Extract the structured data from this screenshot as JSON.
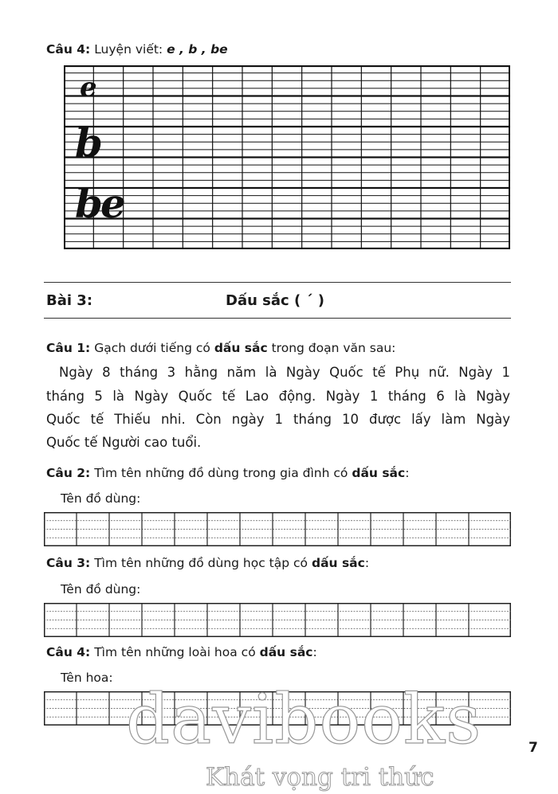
{
  "cau4_top": {
    "label": "Câu 4:",
    "text": "Luyện viết:",
    "letters": "e , b , be"
  },
  "practice_letters": [
    "e",
    "b",
    "be"
  ],
  "section": {
    "label": "Bài 3:",
    "title": "Dấu sắc ( ´ )"
  },
  "cau1": {
    "label": "Câu 1:",
    "text_a": "Gạch dưới tiếng có",
    "bold": "dấu sắc",
    "text_b": "trong đoạn văn sau:"
  },
  "paragraph_lines": [
    "Ngày 8 tháng 3 hằng năm là Ngày Quốc tế Phụ nữ. Ngày 1",
    "tháng 5 là Ngày Quốc tế Lao động. Ngày 1 tháng 6 là Ngày",
    "Quốc tế Thiếu nhi. Còn ngày 1 tháng 10 được lấy làm Ngày",
    "Quốc tế Người cao tuổi."
  ],
  "cau2": {
    "label": "Câu 2:",
    "text": "Tìm tên những đồ dùng trong gia đình có",
    "bold": "dấu sắc",
    "end": ":",
    "field": "Tên đồ dùng:"
  },
  "cau3": {
    "label": "Câu 3:",
    "text": "Tìm tên những đồ dùng học tập có",
    "bold": "dấu sắc",
    "end": ":",
    "field": "Tên đồ dùng:"
  },
  "cau4": {
    "label": "Câu 4:",
    "text": "Tìm tên những loài hoa có",
    "bold": "dấu sắc",
    "end": ":",
    "field": "Tên hoa:"
  },
  "page_number": "7",
  "watermark": {
    "brand": "davibooks",
    "slogan": "Khát vọng tri thức"
  }
}
